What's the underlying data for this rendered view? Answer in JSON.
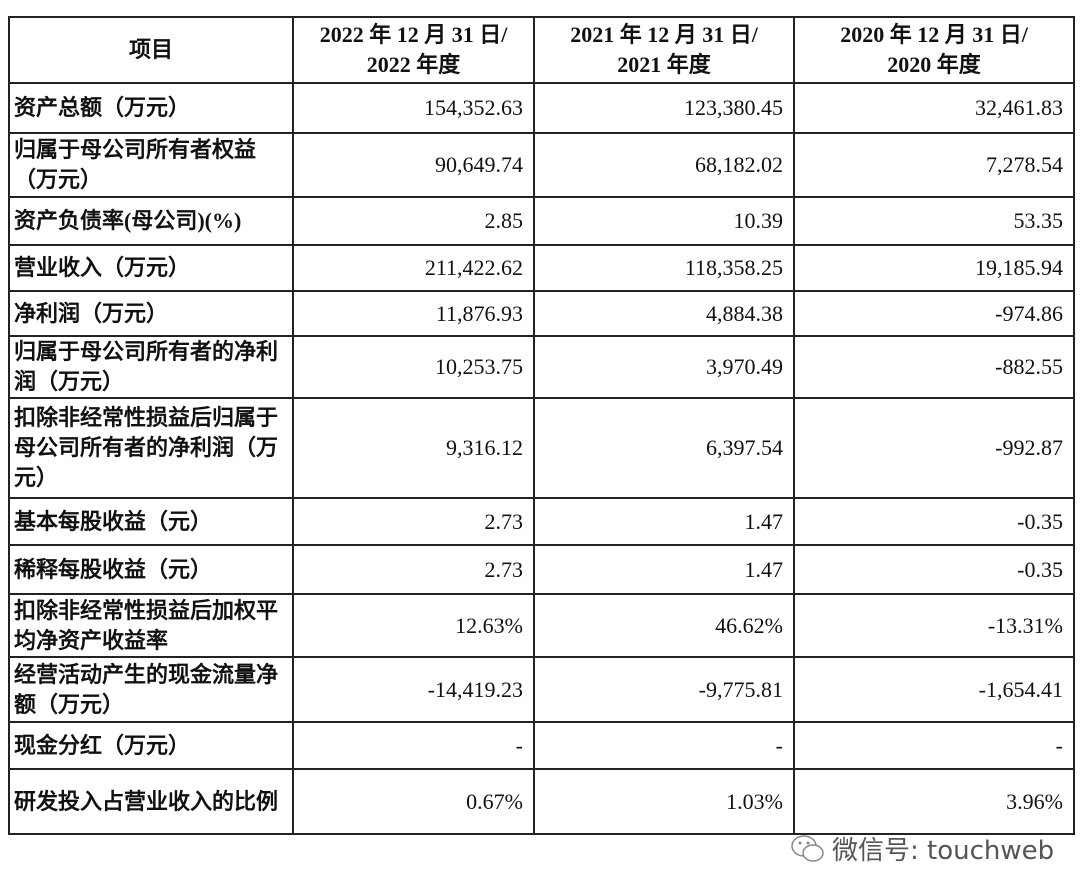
{
  "table": {
    "headers": [
      "项目",
      "2022 年 12 月 31 日/\n2022 年度",
      "2021 年 12 月 31 日/\n2021 年度",
      "2020 年 12 月 31 日/\n2020 年度"
    ],
    "header_lines": [
      [
        "项目"
      ],
      [
        "2022 年 12 月 31 日/",
        "2022 年度"
      ],
      [
        "2021 年 12 月 31 日/",
        "2021 年度"
      ],
      [
        "2020 年 12 月 31 日/",
        "2020 年度"
      ]
    ],
    "rows": [
      {
        "label": "资产总额（万元）",
        "values": [
          "154,352.63",
          "123,380.45",
          "32,461.83"
        ]
      },
      {
        "label": "归属于母公司所有者权益（万元）",
        "values": [
          "90,649.74",
          "68,182.02",
          "7,278.54"
        ]
      },
      {
        "label": "资产负债率(母公司)(%)",
        "values": [
          "2.85",
          "10.39",
          "53.35"
        ]
      },
      {
        "label": "营业收入（万元）",
        "values": [
          "211,422.62",
          "118,358.25",
          "19,185.94"
        ]
      },
      {
        "label": "净利润（万元）",
        "values": [
          "11,876.93",
          "4,884.38",
          "-974.86"
        ]
      },
      {
        "label": "归属于母公司所有者的净利润（万元）",
        "values": [
          "10,253.75",
          "3,970.49",
          "-882.55"
        ]
      },
      {
        "label": "扣除非经常性损益后归属于母公司所有者的净利润（万元）",
        "values": [
          "9,316.12",
          "6,397.54",
          "-992.87"
        ]
      },
      {
        "label": "基本每股收益（元）",
        "values": [
          "2.73",
          "1.47",
          "-0.35"
        ]
      },
      {
        "label": "稀释每股收益（元）",
        "values": [
          "2.73",
          "1.47",
          "-0.35"
        ]
      },
      {
        "label": "扣除非经常性损益后加权平均净资产收益率",
        "values": [
          "12.63%",
          "46.62%",
          "-13.31%"
        ]
      },
      {
        "label": "经营活动产生的现金流量净额（万元）",
        "values": [
          "-14,419.23",
          "-9,775.81",
          "-1,654.41"
        ]
      },
      {
        "label": "现金分红（万元）",
        "values": [
          "-",
          "-",
          "-"
        ]
      },
      {
        "label": "研发投入占营业收入的比例",
        "values": [
          "0.67%",
          "1.03%",
          "3.96%"
        ]
      }
    ]
  },
  "watermark": {
    "text": "微信号: touchweb",
    "icon": "wechat-icon"
  }
}
